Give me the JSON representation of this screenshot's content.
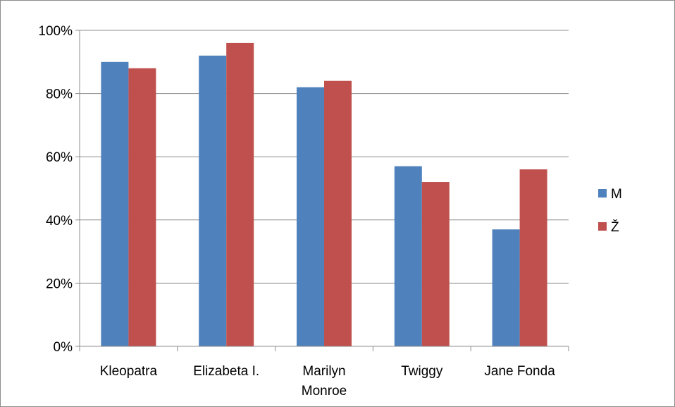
{
  "chart_data": {
    "type": "bar",
    "categories": [
      [
        "Kleopatra"
      ],
      [
        "Elizabeta I."
      ],
      [
        "Marilyn",
        "Monroe"
      ],
      [
        "Twiggy"
      ],
      [
        "Jane Fonda"
      ]
    ],
    "series": [
      {
        "name": "M",
        "color": "#4f81bd",
        "values": [
          90,
          92,
          82,
          57,
          37
        ]
      },
      {
        "name": "Ž",
        "color": "#c0504d",
        "values": [
          88,
          96,
          84,
          52,
          56
        ]
      }
    ],
    "y_ticks": [
      "0%",
      "20%",
      "40%",
      "60%",
      "80%",
      "100%"
    ],
    "ylim": [
      0,
      100
    ],
    "grid": true,
    "legend_position": "right"
  }
}
